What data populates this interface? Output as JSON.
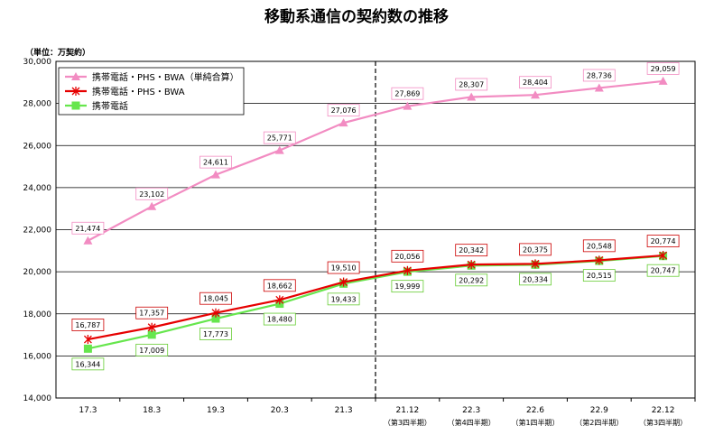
{
  "chart_data": {
    "type": "line",
    "title": "移動系通信の契約数の推移",
    "unit_label": "（単位：万契約）",
    "categories": [
      "17.3",
      "18.3",
      "19.3",
      "20.3",
      "21.3",
      "21.12",
      "22.3",
      "22.6",
      "22.9",
      "22.12"
    ],
    "sub_labels": [
      "",
      "",
      "",
      "",
      "",
      "（第3四半期）",
      "（第4四半期）",
      "（第1四半期）",
      "（第2四半期）",
      "（第3四半期）"
    ],
    "ylim": [
      14000,
      30000
    ],
    "ytick_labels": [
      "14,000",
      "16,000",
      "18,000",
      "20,000",
      "22,000",
      "24,000",
      "26,000",
      "28,000",
      "30,000"
    ],
    "grid": true,
    "divider_after_category": "21.3",
    "legend_position": "top-left",
    "series": [
      {
        "name": "携帯電話・PHS・BWA（単純合算）",
        "color": "#f28cc2",
        "marker": "triangle",
        "values": [
          21474,
          23102,
          24611,
          25771,
          27076,
          27869,
          28307,
          28404,
          28736,
          29059
        ],
        "labels": [
          "21,474",
          "23,102",
          "24,611",
          "25,771",
          "27,076",
          "27,869",
          "28,307",
          "28,404",
          "28,736",
          "29,059"
        ],
        "label_box": "#f28cc2"
      },
      {
        "name": "携帯電話・PHS・BWA",
        "color": "#e60000",
        "marker": "asterisk",
        "values": [
          16787,
          17357,
          18045,
          18662,
          19510,
          20056,
          20342,
          20375,
          20548,
          20774
        ],
        "labels": [
          "16,787",
          "17,357",
          "18,045",
          "18,662",
          "19,510",
          "20,056",
          "20,342",
          "20,375",
          "20,548",
          "20,774"
        ],
        "label_box": "#cc0000"
      },
      {
        "name": "携帯電話",
        "color": "#66e64d",
        "marker": "square",
        "values": [
          16344,
          17009,
          17773,
          18480,
          19433,
          19999,
          20292,
          20334,
          20515,
          20747
        ],
        "labels": [
          "16,344",
          "17,009",
          "17,773",
          "18,480",
          "19,433",
          "19,999",
          "20,292",
          "20,334",
          "20,515",
          "20,747"
        ],
        "label_box": "#66cc33"
      }
    ]
  }
}
